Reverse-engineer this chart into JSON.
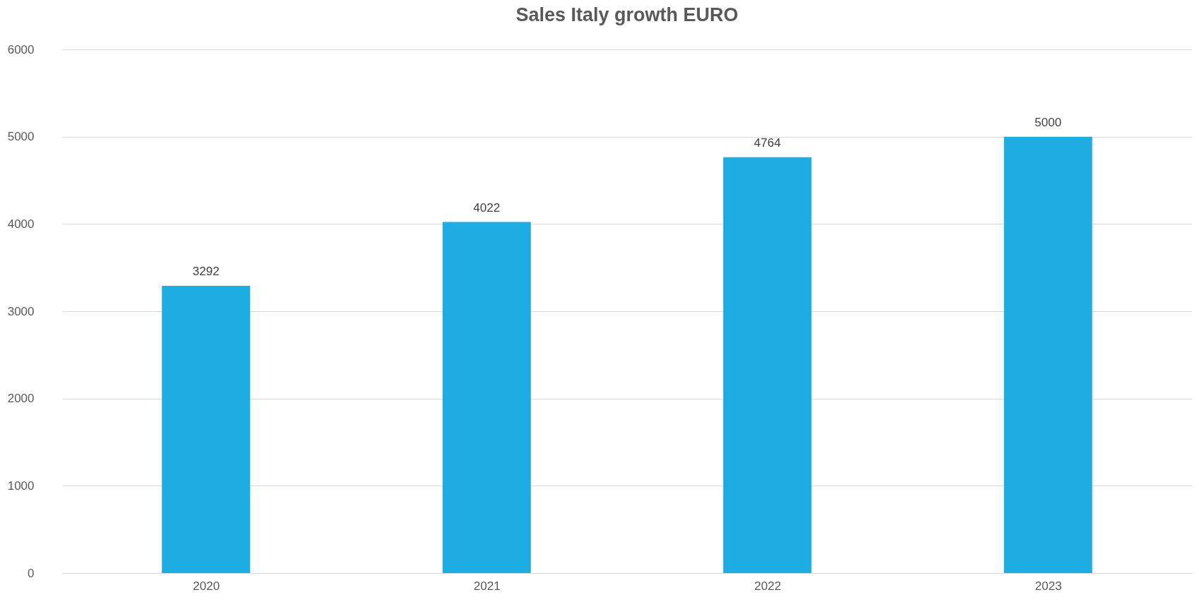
{
  "chart_data": {
    "type": "bar",
    "title": "Sales Italy growth EURO",
    "categories": [
      "2020",
      "2021",
      "2022",
      "2023"
    ],
    "values": [
      3292,
      4022,
      4764,
      5000
    ],
    "color": "#1eade3",
    "ylim": [
      0,
      6000
    ],
    "yticks": [
      0,
      1000,
      2000,
      3000,
      4000,
      5000,
      6000
    ],
    "grid": "y",
    "data_labels": true
  }
}
